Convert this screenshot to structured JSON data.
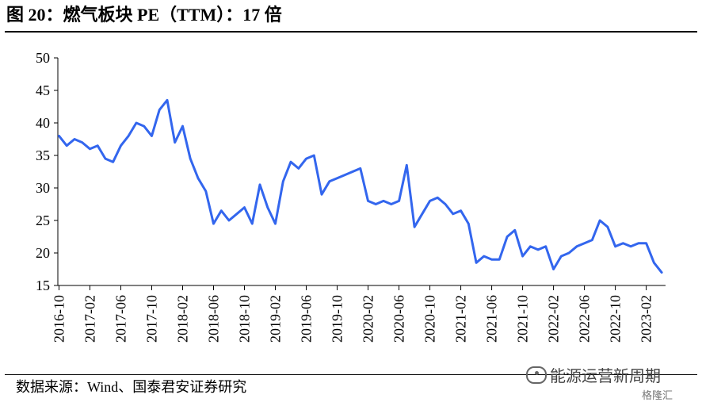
{
  "title": "图 20：燃气板块 PE（TTM）：17 倍",
  "source": "数据来源：Wind、国泰君安证券研究",
  "watermark": "能源运营新周期",
  "watermark2": "格隆汇",
  "chart_data": {
    "type": "line",
    "title": "燃气板块 PE（TTM）：17 倍",
    "xlabel": "",
    "ylabel": "",
    "ylim": [
      15,
      50
    ],
    "yticks": [
      15,
      20,
      25,
      30,
      35,
      40,
      45,
      50
    ],
    "xticks": [
      "2016-10",
      "2017-02",
      "2017-06",
      "2017-10",
      "2018-02",
      "2018-06",
      "2018-10",
      "2019-02",
      "2019-06",
      "2019-10",
      "2020-02",
      "2020-06",
      "2020-10",
      "2021-02",
      "2021-06",
      "2021-10",
      "2022-02",
      "2022-06",
      "2022-10",
      "2023-02"
    ],
    "line_color": "#3366ee",
    "grid": false,
    "series": [
      {
        "name": "",
        "x": [
          "2016-10",
          "2016-11",
          "2016-12",
          "2017-01",
          "2017-02",
          "2017-03",
          "2017-04",
          "2017-05",
          "2017-06",
          "2017-07",
          "2017-08",
          "2017-09",
          "2017-10",
          "2017-11",
          "2017-12",
          "2018-01",
          "2018-02",
          "2018-03",
          "2018-04",
          "2018-05",
          "2018-06",
          "2018-07",
          "2018-08",
          "2018-09",
          "2018-10",
          "2018-11",
          "2018-12",
          "2019-01",
          "2019-02",
          "2019-03",
          "2019-04",
          "2019-05",
          "2019-06",
          "2019-07",
          "2019-08",
          "2019-09",
          "2019-10",
          "2019-11",
          "2019-12",
          "2020-01",
          "2020-02",
          "2020-03",
          "2020-04",
          "2020-05",
          "2020-06",
          "2020-07",
          "2020-08",
          "2020-09",
          "2020-10",
          "2020-11",
          "2020-12",
          "2021-01",
          "2021-02",
          "2021-03",
          "2021-04",
          "2021-05",
          "2021-06",
          "2021-07",
          "2021-08",
          "2021-09",
          "2021-10",
          "2021-11",
          "2021-12",
          "2022-01",
          "2022-02",
          "2022-03",
          "2022-04",
          "2022-05",
          "2022-06",
          "2022-07",
          "2022-08",
          "2022-09",
          "2022-10",
          "2022-11",
          "2022-12",
          "2023-01",
          "2023-02",
          "2023-03",
          "2023-04"
        ],
        "values": [
          38,
          36.5,
          37.5,
          37,
          36,
          36.5,
          34.5,
          34,
          36.5,
          38,
          40,
          39.5,
          38,
          42,
          43.5,
          37,
          39.5,
          34.5,
          31.5,
          29.5,
          24.5,
          26.5,
          25,
          26,
          27,
          24.5,
          30.5,
          27,
          24.5,
          31,
          34,
          33,
          34.5,
          35,
          29,
          31,
          31.5,
          32,
          32.5,
          33,
          28,
          27.5,
          28,
          27.5,
          28,
          33.5,
          24,
          26,
          28,
          28.5,
          27.5,
          26,
          26.5,
          24.5,
          18.5,
          19.5,
          19,
          19,
          22.5,
          23.5,
          19.5,
          21,
          20.5,
          21,
          17.5,
          19.5,
          20,
          21,
          21.5,
          22,
          25,
          24,
          21,
          21.5,
          21,
          21.5,
          21.5,
          18.5,
          17
        ]
      }
    ]
  }
}
